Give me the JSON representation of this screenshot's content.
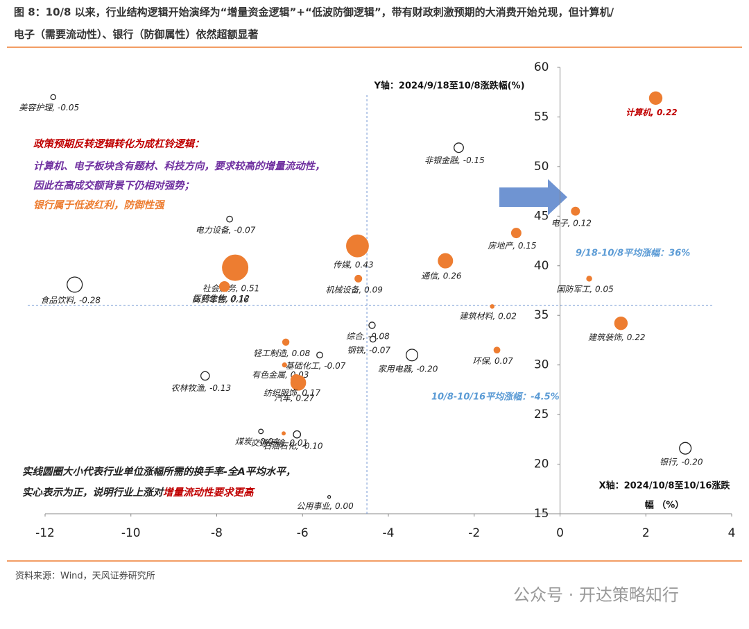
{
  "header": {
    "title_line1": "图 8：10/8 以来，行业结构逻辑开始演绎为“增量资金逻辑”+“低波防御逻辑”，带有财政刺激预期的大消费开始兑现，但计算机/",
    "title_line2": "电子（需要流动性）、银行（防御属性）依然超额显著"
  },
  "chart_data": {
    "type": "scatter",
    "y_axis_title": "Y轴：2024/9/18至10/8涨跌幅(%)",
    "x_axis_title_line1": "X轴：2024/10/8至10/16涨跌",
    "x_axis_title_line2": "幅 （%）",
    "xlim": [
      -12,
      4
    ],
    "xticks": [
      -12,
      -10,
      -8,
      -6,
      -4,
      -2,
      0,
      2,
      4
    ],
    "ylim": [
      15,
      60
    ],
    "yticks": [
      15,
      20,
      25,
      30,
      35,
      40,
      45,
      50,
      55,
      60
    ],
    "positive_color": "#ed7d31",
    "negative_color": "#ffffff",
    "ref_x": -4.5,
    "ref_y": 36,
    "ref_x_label": "10/8-10/16平均涨幅：-4.5%",
    "ref_y_label": "9/18-10/8平均涨幅：36%",
    "series": [
      {
        "name": "行业",
        "labels": [
          "美容护理, -0.05",
          "计算机, 0.22",
          "非银金融, -0.15",
          "电子, 0.12",
          "电力设备, -0.07",
          "通信, 0.26",
          "房地产, 0.15",
          "传媒, 0.43",
          "社会服务, 0.51",
          "机械设备, 0.09",
          "食品饮料, -0.28",
          "国防军工, 0.05",
          "商贸零售, 0.16",
          "医药生物, 0.12",
          "建筑材料, 0.02",
          "建筑装饰, 0.22",
          "综合, -0.08",
          "钢铁, -0.07",
          "轻工制造, 0.08",
          "环保, 0.07",
          "基础化工, -0.07",
          "家用电器, -0.20",
          "有色金属, 0.03",
          "农林牧渔, -0.13",
          "汽车, 0.27",
          "纺织服饰, 0.17",
          "石油石化, -0.10",
          "煤炭, -0.04",
          "交通运输, 0.01",
          "公用事业, 0.00",
          "银行, -0.20"
        ],
        "x": [
          -11.81,
          2.23,
          -2.36,
          0.36,
          -7.7,
          -2.67,
          -1.02,
          -4.72,
          -7.57,
          -4.7,
          -11.31,
          0.68,
          -7.82,
          -7.8,
          -1.58,
          1.42,
          -4.38,
          -4.36,
          -6.39,
          -1.47,
          -5.6,
          -3.45,
          -6.42,
          -8.27,
          -6.1,
          -6.15,
          -6.13,
          -6.97,
          -6.44,
          -5.38,
          2.92
        ],
        "y": [
          57,
          56.9,
          51.9,
          45.5,
          44.7,
          40.5,
          43.3,
          42,
          39.8,
          38.7,
          38.1,
          38.7,
          37.9,
          37.9,
          35.9,
          34.2,
          34,
          32.6,
          32.3,
          31.5,
          31,
          31,
          30,
          28.9,
          28.2,
          28.5,
          23,
          23.3,
          23.1,
          16.7,
          21.6
        ],
        "sizes": [
          -0.05,
          0.22,
          -0.15,
          0.12,
          -0.07,
          0.26,
          0.15,
          0.43,
          0.51,
          0.09,
          -0.28,
          0.05,
          0.16,
          0.12,
          0.02,
          0.22,
          -0.08,
          -0.07,
          0.08,
          0.07,
          -0.07,
          -0.2,
          0.03,
          -0.13,
          0.27,
          0.17,
          -0.1,
          -0.04,
          0.01,
          0,
          -0.2
        ]
      }
    ],
    "notes": {
      "line1": "政策预期反转逻辑转化为成杠铃逻辑：",
      "line2": "计算机、电子板块含有题材、科技方向，要求较高的增量流动性，",
      "line3": "因此在高成交额背景下仍相对强势；",
      "line4": "银行属于低波红利，防御性强",
      "bottom1": "实线圆圈大小代表行业单位涨幅所需的换手率-全A平均水平，",
      "bottom2a": "实心表示为正，说明行业上涨对",
      "bottom2b": "增量流动性要求更高"
    }
  },
  "footer": {
    "source": "资料来源：Wind，天风证券研究所",
    "watermark": "公众号 · 开达策略知行"
  }
}
